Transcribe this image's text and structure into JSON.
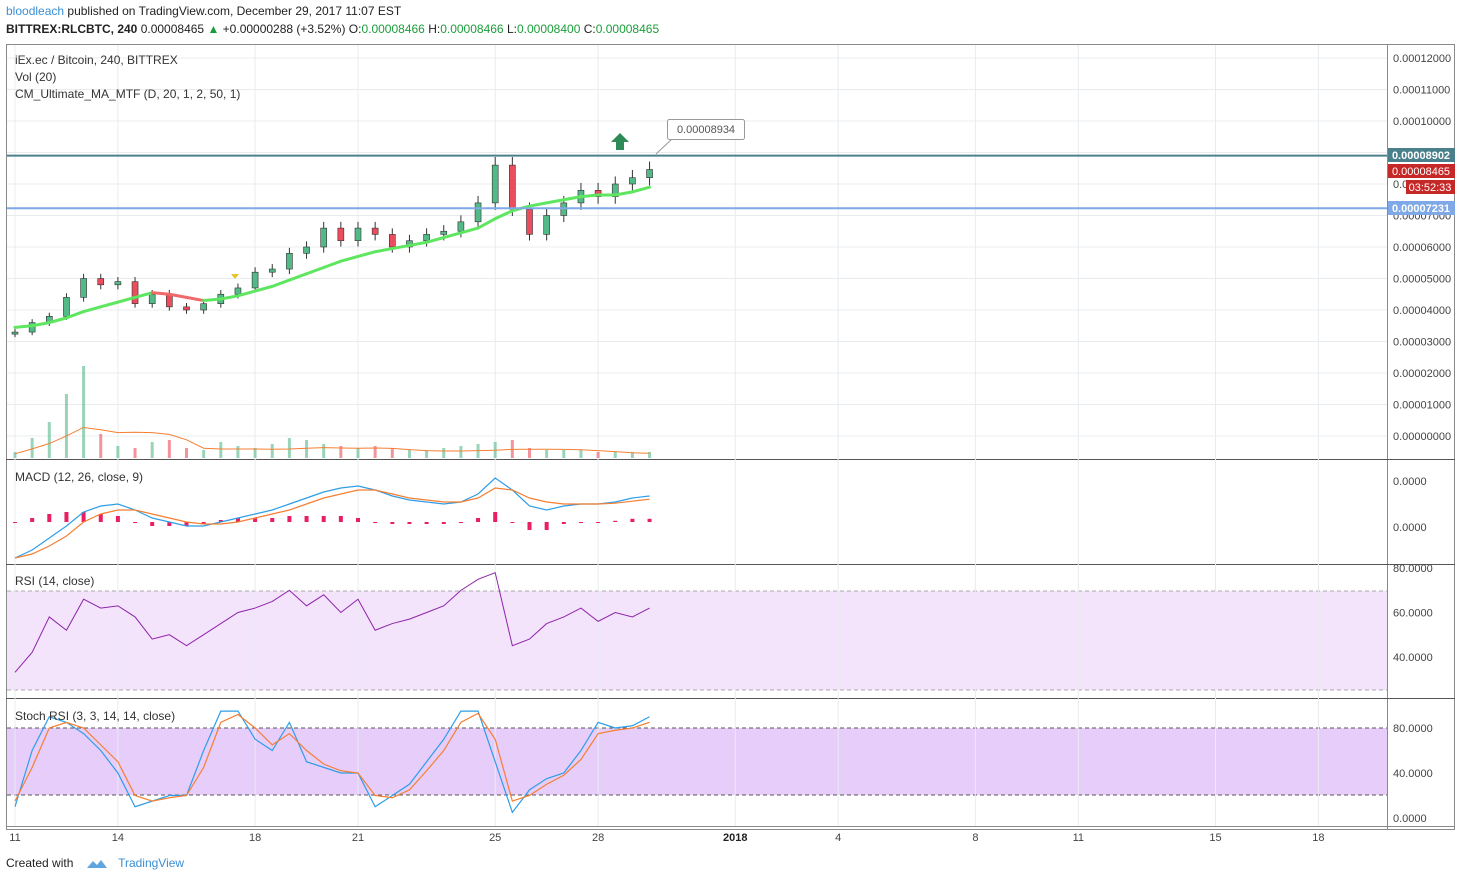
{
  "header": {
    "user": "bloodleach",
    "published_text": "published on TradingView.com, December 29, 2017 11:07 EST",
    "symbol": "BITTREX:RLCBTC, 240",
    "last": "0.00008465",
    "change": "+0.00000288 (+3.52%)",
    "o_label": "O:",
    "o": "0.00008466",
    "h_label": "H:",
    "h": "0.00008466",
    "l_label": "L:",
    "l": "0.00008400",
    "c_label": "C:",
    "c": "0.00008465"
  },
  "legend": {
    "title": "iEx.ec / Bitcoin, 240, BITTREX",
    "vol": "Vol (20)",
    "ma": "CM_Ultimate_MA_MTF (D, 20, 1, 2, 50, 1)",
    "macd": "MACD (12, 26, close, 9)",
    "rsi": "RSI (14, close)",
    "stoch": "Stoch RSI (3, 3, 14, 14, close)"
  },
  "price_labels": {
    "callout": "0.00008934",
    "resistance": "0.00008902",
    "last": "0.00008465",
    "countdown": "03:52:33",
    "support": "0.00007231"
  },
  "colors": {
    "up": "#53b987",
    "down": "#eb4d5c",
    "ma_up": "#5ee660",
    "ma_down": "#f06a6a",
    "resistance": "#4a7f8c",
    "support": "#7fa8e6",
    "macd": "#2e9ee8",
    "signal": "#f57f32",
    "hist": "#e91e63",
    "rsi": "#8e24aa",
    "brand": "#3a8fd6"
  },
  "footer": {
    "created_with": "Created with",
    "brand": "TradingView"
  },
  "chart_data": [
    {
      "type": "candlestick",
      "title": "iEx.ec / Bitcoin, 240, BITTREX",
      "x_tick_labels": [
        "11",
        "14",
        "18",
        "21",
        "25",
        "28",
        "2018",
        "4",
        "8",
        "11",
        "15",
        "18"
      ],
      "y_tick_labels": [
        "0.00012000",
        "0.00011000",
        "0.00010000",
        "0.00009000",
        "0.00008000",
        "0.00007000",
        "0.00006000",
        "0.00005000",
        "0.00004000",
        "0.00003000",
        "0.00002000",
        "0.00001000",
        "0.00000000"
      ],
      "ylim": [
        -8e-06,
        0.000124
      ],
      "x_days": [
        11,
        11.5,
        12,
        12.5,
        13,
        13.5,
        14,
        14.5,
        15,
        15.5,
        16,
        16.5,
        17,
        17.5,
        18,
        18.5,
        19,
        19.5,
        20,
        20.5,
        21,
        21.5,
        22,
        22.5,
        23,
        23.5,
        24,
        24.5,
        25,
        25.5,
        26,
        26.5,
        27,
        27.5,
        28,
        28.5,
        29,
        29.5
      ],
      "close": [
        3.3e-05,
        3.6e-05,
        3.8e-05,
        4.4e-05,
        5e-05,
        4.8e-05,
        4.9e-05,
        4.2e-05,
        4.5e-05,
        4.1e-05,
        4e-05,
        4.2e-05,
        4.5e-05,
        4.7e-05,
        5.2e-05,
        5.3e-05,
        5.8e-05,
        6e-05,
        6.6e-05,
        6.2e-05,
        6.6e-05,
        6.4e-05,
        6e-05,
        6.2e-05,
        6.4e-05,
        6.5e-05,
        6.8e-05,
        7.4e-05,
        8.6e-05,
        7.2e-05,
        6.4e-05,
        7e-05,
        7.4e-05,
        7.8e-05,
        7.6e-05,
        8e-05,
        8.2e-05,
        8.46e-05
      ],
      "horizontal_lines": [
        8.902e-05,
        7.231e-05
      ],
      "ma": [
        3.45e-05,
        3.5e-05,
        3.6e-05,
        3.75e-05,
        3.95e-05,
        4.1e-05,
        4.25e-05,
        4.4e-05,
        4.55e-05,
        4.5e-05,
        4.4e-05,
        4.3e-05,
        4.35e-05,
        4.45e-05,
        4.6e-05,
        4.75e-05,
        4.95e-05,
        5.15e-05,
        5.35e-05,
        5.55e-05,
        5.7e-05,
        5.85e-05,
        5.95e-05,
        6.05e-05,
        6.15e-05,
        6.3e-05,
        6.45e-05,
        6.6e-05,
        6.9e-05,
        7.15e-05,
        7.3e-05,
        7.4e-05,
        7.5e-05,
        7.6e-05,
        7.65e-05,
        7.65e-05,
        7.75e-05,
        7.9e-05
      ]
    },
    {
      "type": "bar",
      "title": "Vol (20)",
      "x_days": [
        11,
        11.5,
        12,
        12.5,
        13,
        13.5,
        14,
        14.5,
        15,
        15.5,
        16,
        16.5,
        17,
        17.5,
        18,
        18.5,
        19,
        19.5,
        20,
        20.5,
        21,
        21.5,
        22,
        22.5,
        23,
        23.5,
        24,
        24.5,
        25,
        25.5,
        26,
        26.5,
        27,
        27.5,
        28,
        28.5,
        29,
        29.5
      ],
      "values": [
        0.3,
        1.0,
        1.8,
        3.2,
        4.6,
        1.2,
        0.6,
        0.5,
        0.8,
        0.9,
        0.5,
        0.4,
        0.8,
        0.6,
        0.5,
        0.7,
        1.0,
        0.9,
        0.7,
        0.6,
        0.5,
        0.6,
        0.5,
        0.4,
        0.4,
        0.5,
        0.6,
        0.7,
        0.8,
        0.9,
        0.5,
        0.4,
        0.4,
        0.4,
        0.3,
        0.3,
        0.3,
        0.3
      ]
    },
    {
      "type": "line",
      "title": "MACD (12, 26, close, 9)",
      "y_tick_labels": [
        "0.0000",
        "0.0000"
      ],
      "series": [
        {
          "values": [
            -0.9,
            -0.7,
            -0.4,
            -0.1,
            0.25,
            0.4,
            0.45,
            0.3,
            0.1,
            0.0,
            -0.1,
            -0.1,
            0.0,
            0.1,
            0.2,
            0.3,
            0.45,
            0.6,
            0.75,
            0.85,
            0.9,
            0.8,
            0.65,
            0.55,
            0.5,
            0.45,
            0.5,
            0.7,
            1.1,
            0.8,
            0.4,
            0.3,
            0.4,
            0.45,
            0.45,
            0.5,
            0.6,
            0.65
          ]
        },
        {
          "values": [
            -0.9,
            -0.8,
            -0.6,
            -0.35,
            0.0,
            0.2,
            0.3,
            0.3,
            0.2,
            0.1,
            0.0,
            -0.05,
            -0.05,
            0.0,
            0.1,
            0.2,
            0.3,
            0.45,
            0.6,
            0.7,
            0.8,
            0.8,
            0.7,
            0.6,
            0.55,
            0.5,
            0.5,
            0.6,
            0.85,
            0.8,
            0.6,
            0.5,
            0.45,
            0.45,
            0.45,
            0.47,
            0.52,
            0.57
          ]
        }
      ],
      "histogram": [
        0.0,
        0.1,
        0.2,
        0.25,
        0.25,
        0.2,
        0.15,
        0.0,
        -0.1,
        -0.1,
        -0.1,
        -0.05,
        0.05,
        0.1,
        0.1,
        0.1,
        0.15,
        0.15,
        0.15,
        0.15,
        0.1,
        0.0,
        -0.05,
        -0.05,
        -0.05,
        -0.05,
        0.0,
        0.1,
        0.25,
        0.0,
        -0.2,
        -0.2,
        -0.05,
        0.0,
        0.0,
        0.03,
        0.08,
        0.08
      ]
    },
    {
      "type": "line",
      "title": "RSI (14, close)",
      "y_tick_labels": [
        "80.0000",
        "60.0000",
        "40.0000"
      ],
      "bands": [
        30,
        70
      ],
      "ylim": [
        25,
        81
      ],
      "series": [
        {
          "values": [
            33,
            42,
            58,
            52,
            66,
            62,
            63,
            58,
            48,
            50,
            45,
            50,
            55,
            60,
            62,
            65,
            70,
            63,
            68,
            60,
            66,
            52,
            55,
            57,
            60,
            63,
            70,
            75,
            78,
            45,
            48,
            55,
            58,
            62,
            56,
            60,
            58,
            62
          ]
        }
      ]
    },
    {
      "type": "line",
      "title": "Stoch RSI (3, 3, 14, 14, close)",
      "y_tick_labels": [
        "80.0000",
        "40.0000",
        "0.0000"
      ],
      "bands": [
        20,
        80
      ],
      "ylim": [
        -2,
        102
      ],
      "series": [
        {
          "values": [
            10,
            60,
            90,
            85,
            75,
            60,
            40,
            10,
            15,
            20,
            20,
            60,
            95,
            95,
            70,
            60,
            85,
            50,
            45,
            40,
            40,
            10,
            20,
            30,
            50,
            70,
            95,
            95,
            50,
            5,
            25,
            35,
            40,
            60,
            85,
            80,
            82,
            90
          ]
        },
        {
          "values": [
            15,
            45,
            80,
            85,
            80,
            65,
            50,
            20,
            15,
            18,
            20,
            45,
            85,
            92,
            80,
            65,
            75,
            60,
            48,
            42,
            40,
            20,
            18,
            25,
            42,
            60,
            85,
            93,
            70,
            15,
            20,
            30,
            38,
            52,
            75,
            78,
            80,
            85
          ]
        }
      ]
    }
  ]
}
